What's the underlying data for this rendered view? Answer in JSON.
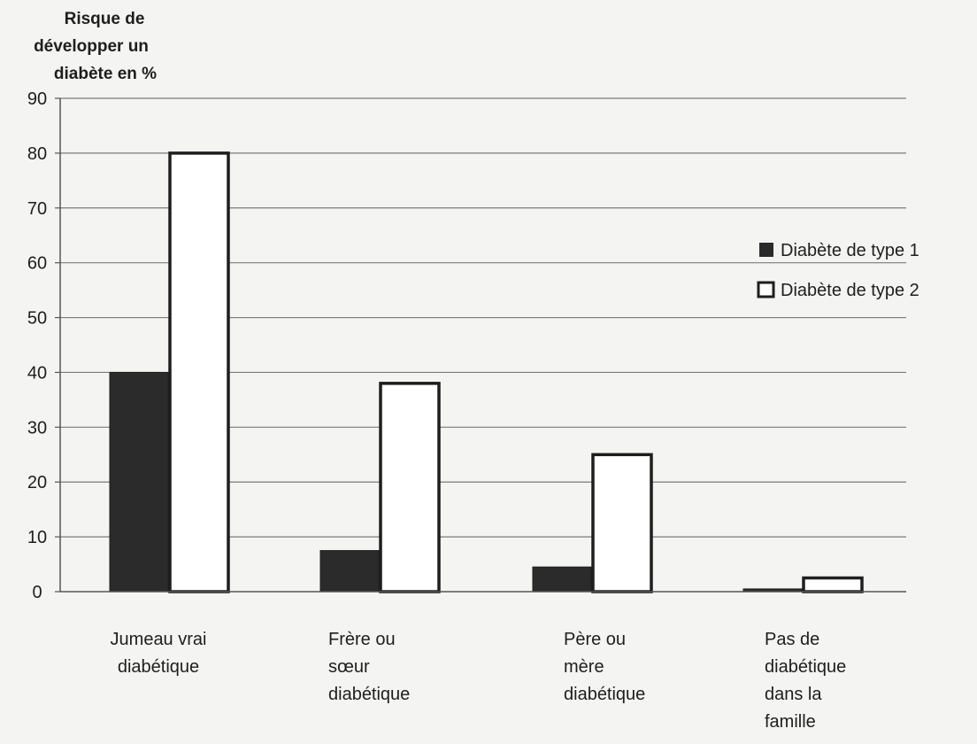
{
  "chart_data": {
    "type": "bar",
    "ylabel_lines": [
      "Risque de",
      "développer un",
      "diabète en %"
    ],
    "xlabel": "",
    "ylim": [
      0,
      90
    ],
    "yticks": [
      0,
      10,
      20,
      30,
      40,
      50,
      60,
      70,
      80,
      90
    ],
    "grid": true,
    "legend_position": "right",
    "categories": [
      [
        "Jumeau vrai",
        "diabétique"
      ],
      [
        "Frère ou",
        "sœur",
        "diabétique"
      ],
      [
        "Père ou",
        "mère",
        "diabétique"
      ],
      [
        "Pas de",
        "diabétique",
        "dans la",
        "famille"
      ]
    ],
    "series": [
      {
        "name": "Diabète de type 1",
        "values": [
          40,
          7.5,
          4.5,
          0.5
        ],
        "fill": "#2b2b2b"
      },
      {
        "name": "Diabète de type 2",
        "values": [
          80,
          38,
          25,
          2.5
        ],
        "fill": "#ffffff"
      }
    ],
    "colors": {
      "grid": "#7a7a7a",
      "axis": "#555555",
      "bar_stroke": "#1e1e1e"
    }
  }
}
